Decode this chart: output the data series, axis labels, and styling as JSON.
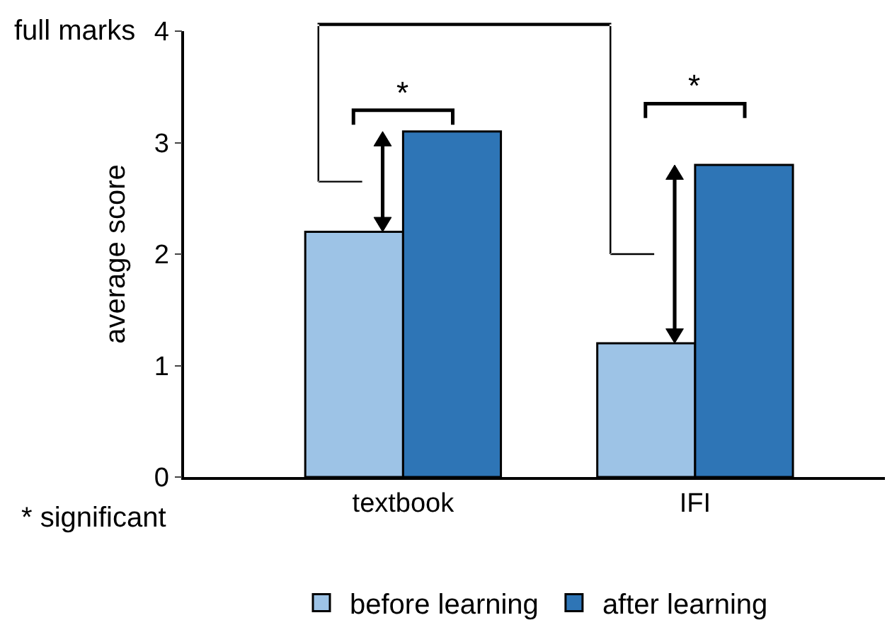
{
  "chart_data": {
    "type": "bar",
    "ylabel": "average score",
    "categories": [
      "textbook",
      "IFI"
    ],
    "series": [
      {
        "name": "before learning",
        "color": "#9dc3e6",
        "values": [
          2.2,
          1.2
        ]
      },
      {
        "name": "after learning",
        "color": "#2e75b6",
        "values": [
          3.1,
          2.8
        ]
      }
    ],
    "ylim": [
      0,
      4
    ],
    "yticks": [
      0,
      1,
      2,
      3,
      4
    ],
    "legend": "bottom",
    "annotations": [
      "*",
      "*",
      "full marks",
      "* significant"
    ]
  }
}
